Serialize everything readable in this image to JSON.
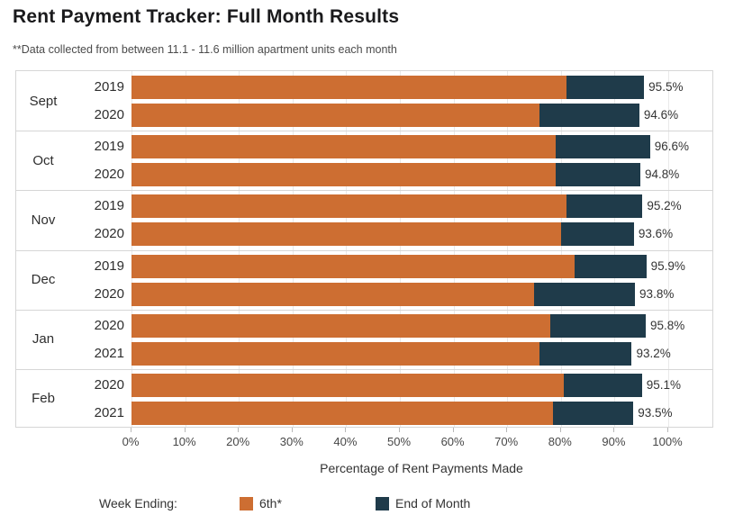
{
  "title": "Rent Payment Tracker: Full Month Results",
  "subtitle": "**Data collected from between 11.1 - 11.6 million apartment units each month",
  "colors": {
    "sixth": "#cd6e32",
    "end_of_month": "#1f3b4a",
    "gridline": "#e9e9e9",
    "border": "#d6d6d6"
  },
  "axis": {
    "label": "Percentage of Rent Payments Made",
    "ticks": [
      "0%",
      "10%",
      "20%",
      "30%",
      "40%",
      "50%",
      "60%",
      "70%",
      "80%",
      "90%",
      "100%"
    ]
  },
  "legend": {
    "label": "Week Ending:",
    "items": [
      {
        "label": "6th*",
        "color": "#cd6e32"
      },
      {
        "label": "End of Month",
        "color": "#1f3b4a"
      }
    ]
  },
  "chart_data": {
    "type": "bar",
    "orientation": "horizontal",
    "stacked": true,
    "grid": true,
    "legend_position": "bottom",
    "title": "Rent Payment Tracker: Full Month Results",
    "xlabel": "Percentage of Rent Payments Made",
    "xlim": [
      0,
      100
    ],
    "series_names": [
      "6th*",
      "End of Month"
    ],
    "groups": [
      {
        "month": "Sept",
        "bars": [
          {
            "year": "2019",
            "by_6th": 81.0,
            "end_of_month": 14.5,
            "total": 95.5,
            "total_label": "95.5%"
          },
          {
            "year": "2020",
            "by_6th": 76.0,
            "end_of_month": 18.6,
            "total": 94.6,
            "total_label": "94.6%"
          }
        ]
      },
      {
        "month": "Oct",
        "bars": [
          {
            "year": "2019",
            "by_6th": 79.0,
            "end_of_month": 17.6,
            "total": 96.6,
            "total_label": "96.6%"
          },
          {
            "year": "2020",
            "by_6th": 79.0,
            "end_of_month": 15.8,
            "total": 94.8,
            "total_label": "94.8%"
          }
        ]
      },
      {
        "month": "Nov",
        "bars": [
          {
            "year": "2019",
            "by_6th": 81.0,
            "end_of_month": 14.2,
            "total": 95.2,
            "total_label": "95.2%"
          },
          {
            "year": "2020",
            "by_6th": 80.0,
            "end_of_month": 13.6,
            "total": 93.6,
            "total_label": "93.6%"
          }
        ]
      },
      {
        "month": "Dec",
        "bars": [
          {
            "year": "2019",
            "by_6th": 82.5,
            "end_of_month": 13.4,
            "total": 95.9,
            "total_label": "95.9%"
          },
          {
            "year": "2020",
            "by_6th": 75.0,
            "end_of_month": 18.8,
            "total": 93.8,
            "total_label": "93.8%"
          }
        ]
      },
      {
        "month": "Jan",
        "bars": [
          {
            "year": "2020",
            "by_6th": 78.0,
            "end_of_month": 17.8,
            "total": 95.8,
            "total_label": "95.8%"
          },
          {
            "year": "2021",
            "by_6th": 76.0,
            "end_of_month": 17.2,
            "total": 93.2,
            "total_label": "93.2%"
          }
        ]
      },
      {
        "month": "Feb",
        "bars": [
          {
            "year": "2020",
            "by_6th": 80.5,
            "end_of_month": 14.6,
            "total": 95.1,
            "total_label": "95.1%"
          },
          {
            "year": "2021",
            "by_6th": 78.5,
            "end_of_month": 15.0,
            "total": 93.5,
            "total_label": "93.5%"
          }
        ]
      }
    ]
  }
}
